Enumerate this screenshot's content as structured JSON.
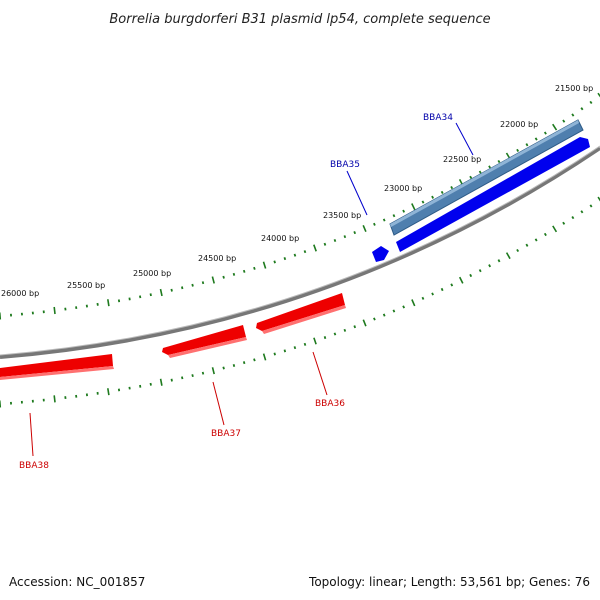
{
  "title": "Borrelia burgdorferi B31 plasmid lp54, complete sequence",
  "footer": {
    "accession": "Accession: NC_001857",
    "summary": "Topology: linear; Length: 53,561 bp; Genes: 76"
  },
  "bp_labels": [
    "21500 bp",
    "22000 bp",
    "22500 bp",
    "23000 bp",
    "23500 bp",
    "24000 bp",
    "24500 bp",
    "25000 bp",
    "25500 bp",
    "26000 bp"
  ],
  "genes": [
    {
      "name": "BBA34",
      "color": "#0000aa"
    },
    {
      "name": "BBA35",
      "color": "#0000aa"
    },
    {
      "name": "BBA36",
      "color": "#cc0000"
    },
    {
      "name": "BBA37",
      "color": "#cc0000"
    },
    {
      "name": "BBA38",
      "color": "#cc0000"
    }
  ],
  "colors": {
    "backbone": "#7a7a7a",
    "tick": "#1e7a1e",
    "forward_gene": "#0000ee",
    "reverse_gene": "#ee0000",
    "highlight_gene": "#4a7aa8"
  }
}
